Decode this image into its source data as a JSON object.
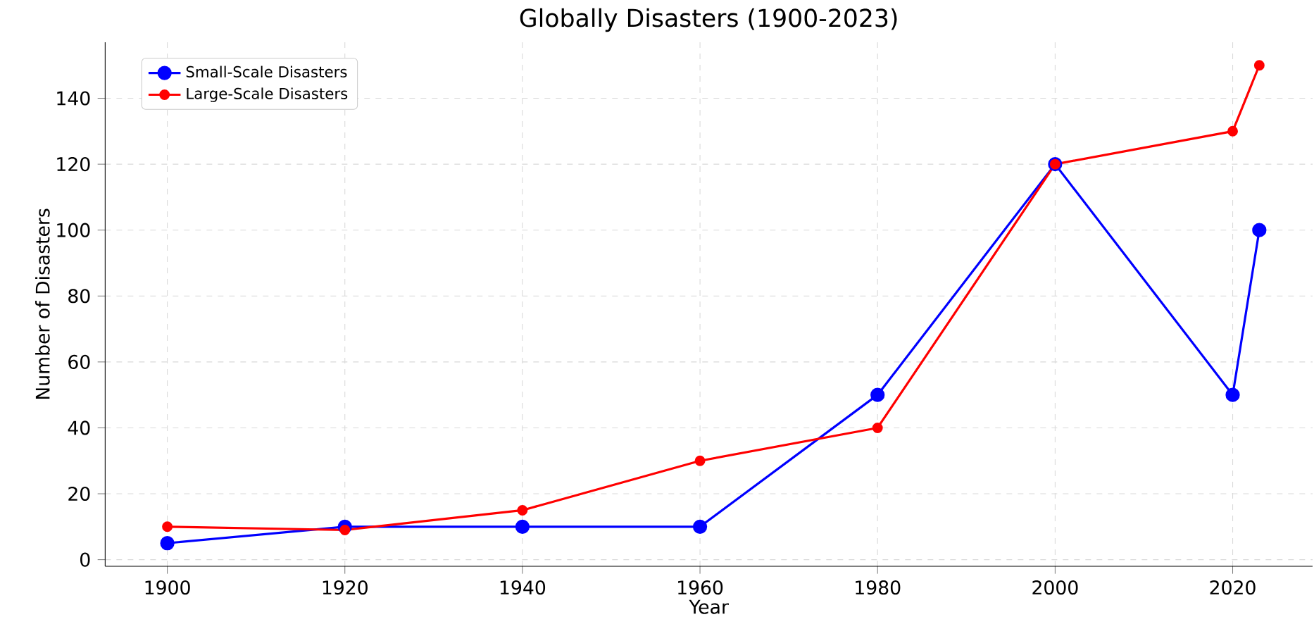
{
  "chart_data": {
    "type": "line",
    "title": "Globally Disasters (1900-2023)",
    "xlabel": "Year",
    "ylabel": "Number of Disasters",
    "x": [
      1900,
      1920,
      1940,
      1960,
      1980,
      2000,
      2020,
      2023
    ],
    "series": [
      {
        "name": "Small-Scale Disasters",
        "color": "#0000ff",
        "values": [
          5,
          10,
          10,
          10,
          50,
          120,
          50,
          100
        ]
      },
      {
        "name": "Large-Scale Disasters",
        "color": "#ff0000",
        "values": [
          10,
          9,
          15,
          30,
          40,
          120,
          130,
          150
        ]
      }
    ],
    "xlim": [
      1893,
      2029
    ],
    "ylim": [
      -2,
      157
    ],
    "xticks": [
      1900,
      1920,
      1940,
      1960,
      1980,
      2000,
      2020
    ],
    "yticks": [
      0,
      20,
      40,
      60,
      80,
      100,
      120,
      140
    ],
    "grid": true,
    "legend": "top left",
    "marker": "circle",
    "line_style": "solid"
  }
}
